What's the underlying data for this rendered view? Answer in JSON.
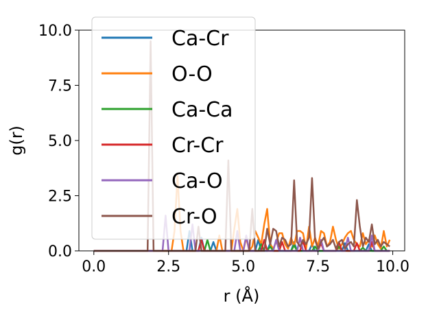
{
  "chart_data": {
    "type": "line",
    "xlabel": "r (Å)",
    "ylabel": "g(r)",
    "xlim": [
      -0.5,
      10.4
    ],
    "ylim": [
      0,
      10
    ],
    "xticks": [
      "0.0",
      "2.5",
      "5.0",
      "7.5",
      "10.0"
    ],
    "yticks": [
      "0.0",
      "2.5",
      "5.0",
      "7.5",
      "10.0"
    ],
    "grid": false,
    "legend_position": "upper-left",
    "series": [
      {
        "name": "Ca-Cr",
        "color": "#1f77b4",
        "x": [
          0,
          3.1,
          3.2,
          3.3,
          3.5,
          3.6,
          3.7,
          3.9,
          4.0,
          4.1,
          5.4,
          5.5,
          5.6,
          5.8,
          5.9,
          6.0,
          6.6,
          6.7,
          6.8,
          7.2,
          7.3,
          7.4,
          8.3,
          8.4,
          8.5,
          9.1,
          9.2,
          9.3,
          9.9
        ],
        "values": [
          0,
          0,
          0.9,
          0,
          0,
          0.6,
          0,
          0,
          0.4,
          0,
          0,
          0.5,
          0,
          0,
          0.35,
          0,
          0,
          0.4,
          0,
          0,
          0.3,
          0,
          0,
          0.35,
          0,
          0,
          0.3,
          0,
          0
        ]
      },
      {
        "name": "O-O",
        "color": "#ff7f0e",
        "x": [
          0,
          2.6,
          2.7,
          2.8,
          2.9,
          3.0,
          4.1,
          4.2,
          4.3,
          4.6,
          4.7,
          4.8,
          4.9,
          5.0,
          5.1,
          5.2,
          5.3,
          5.4,
          5.5,
          5.6,
          5.7,
          5.8,
          5.9,
          6.0,
          6.1,
          6.2,
          6.3,
          6.4,
          6.5,
          6.6,
          6.7,
          6.8,
          6.9,
          7.0,
          7.1,
          7.2,
          7.3,
          7.4,
          7.5,
          7.6,
          7.7,
          7.8,
          7.9,
          8.0,
          8.1,
          8.2,
          8.3,
          8.4,
          8.5,
          8.6,
          8.7,
          8.8,
          8.9,
          9.0,
          9.1,
          9.2,
          9.3,
          9.4,
          9.5,
          9.6,
          9.7,
          9.8,
          9.9
        ],
        "values": [
          0,
          0,
          0.9,
          3.4,
          0.9,
          0,
          0,
          0.7,
          0,
          0,
          1.0,
          1.9,
          0.4,
          0,
          0.6,
          0,
          0.2,
          0.9,
          0.6,
          0.3,
          1.2,
          1.9,
          0.3,
          0.1,
          0.4,
          0.8,
          0.8,
          0.3,
          0.1,
          0.6,
          0.2,
          0.9,
          0.9,
          0.8,
          0.1,
          1.1,
          0.2,
          0.6,
          0.2,
          0.9,
          0.8,
          0.2,
          0.4,
          1.1,
          0.5,
          0.1,
          0.3,
          0.6,
          0.8,
          0.9,
          0.5,
          0.3,
          0.2,
          0.8,
          0.3,
          0.5,
          0.2,
          0.7,
          0.3,
          0.1,
          0.9,
          0.2,
          0.5
        ]
      },
      {
        "name": "Ca-Ca",
        "color": "#2ca02c",
        "x": [
          0,
          3.7,
          3.8,
          3.9,
          5.5,
          5.6,
          5.7,
          5.8,
          5.9,
          6.0,
          6.6,
          6.7,
          6.8,
          7.3,
          7.4,
          7.5,
          8.1,
          8.2,
          8.3,
          8.9,
          9.0,
          9.1,
          9.6,
          9.7,
          9.8,
          9.9
        ],
        "values": [
          0,
          0,
          0.5,
          0,
          0,
          0.3,
          0,
          0,
          0.2,
          0,
          0,
          0.25,
          0,
          0,
          0.2,
          0,
          0,
          0.2,
          0,
          0,
          0.15,
          0,
          0,
          0.2,
          0,
          0
        ]
      },
      {
        "name": "Cr-Cr",
        "color": "#d62728",
        "x": [
          0,
          3.5,
          3.6,
          3.7,
          5.6,
          5.7,
          5.8,
          6.2,
          6.3,
          6.4,
          6.9,
          7.0,
          7.1,
          7.5,
          7.6,
          7.7,
          8.1,
          8.2,
          8.3,
          8.7,
          8.8,
          8.9,
          9.2,
          9.3,
          9.4,
          9.9
        ],
        "values": [
          0,
          0,
          0.5,
          0,
          0,
          0.5,
          0,
          0,
          0.4,
          0,
          0,
          0.45,
          0,
          0,
          0.35,
          0,
          0,
          0.4,
          0,
          0,
          0.35,
          0,
          0,
          0.4,
          0,
          0
        ]
      },
      {
        "name": "Ca-O",
        "color": "#9467bd",
        "x": [
          0,
          2.3,
          2.4,
          2.5,
          3.2,
          3.3,
          3.4,
          4.7,
          4.8,
          4.9,
          5.0,
          5.1,
          5.2,
          6.0,
          6.1,
          6.2,
          6.8,
          6.9,
          7.0,
          7.5,
          7.6,
          7.7,
          8.4,
          8.5,
          8.6,
          9.2,
          9.3,
          9.4,
          9.9
        ],
        "values": [
          0,
          0,
          1.6,
          0,
          0,
          1.2,
          0,
          0,
          0.9,
          0,
          0,
          0.7,
          0,
          0,
          0.5,
          0,
          0,
          0.6,
          0,
          0,
          0.5,
          0,
          0,
          0.6,
          0,
          0,
          0.7,
          0,
          0
        ]
      },
      {
        "name": "Cr-O",
        "color": "#8c564b",
        "x": [
          0,
          1.8,
          1.9,
          2.0,
          3.4,
          3.5,
          3.6,
          4.4,
          4.5,
          4.6,
          5.2,
          5.3,
          5.4,
          5.7,
          5.8,
          5.9,
          6.0,
          6.1,
          6.2,
          6.3,
          6.4,
          6.5,
          6.6,
          6.7,
          6.8,
          6.9,
          7.0,
          7.1,
          7.2,
          7.3,
          7.4,
          7.5,
          7.6,
          7.7,
          7.8,
          7.9,
          8.0,
          8.1,
          8.2,
          8.3,
          8.4,
          8.5,
          8.6,
          8.7,
          8.8,
          8.9,
          9.0,
          9.1,
          9.2,
          9.3,
          9.4,
          9.5,
          9.6,
          9.7,
          9.8,
          9.9
        ],
        "values": [
          0,
          0,
          9.5,
          0,
          0,
          1.1,
          0,
          0,
          4.1,
          0,
          0,
          1.9,
          0,
          0,
          1.0,
          0.3,
          1.0,
          0.9,
          0.2,
          0.6,
          0.5,
          0.2,
          0.3,
          3.2,
          0.4,
          0.2,
          0.5,
          0.3,
          0.6,
          3.3,
          0.5,
          0.1,
          0.4,
          0.6,
          0.2,
          0.3,
          0.5,
          0.1,
          0.4,
          0.5,
          0.1,
          0.3,
          0.4,
          0.2,
          2.3,
          1.1,
          0.2,
          0.6,
          0.4,
          1.2,
          0.3,
          0.5,
          0.2,
          0.4,
          0.3,
          0.2
        ]
      }
    ]
  }
}
